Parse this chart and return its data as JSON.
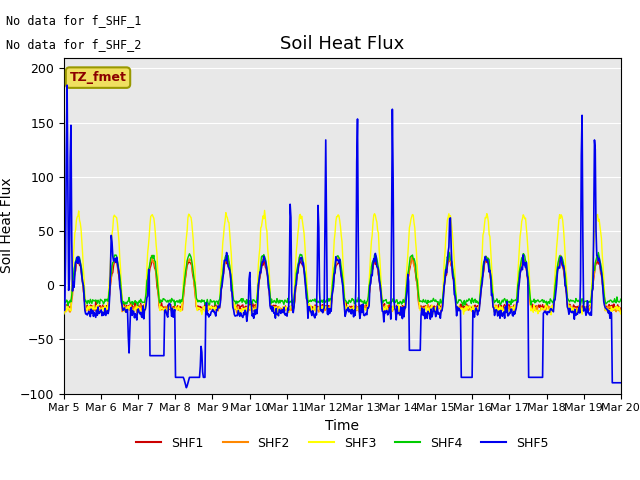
{
  "title": "Soil Heat Flux",
  "xlabel": "Time",
  "ylabel": "Soil Heat Flux",
  "ylim": [
    -100,
    210
  ],
  "yticks": [
    -100,
    -50,
    0,
    50,
    100,
    150,
    200
  ],
  "annotation1": "No data for f_SHF_1",
  "annotation2": "No data for f_SHF_2",
  "label_box": "TZ_fmet",
  "colors": {
    "SHF1": "#cc0000",
    "SHF2": "#ff8800",
    "SHF3": "#ffff00",
    "SHF4": "#00cc00",
    "SHF5": "#0000ee"
  },
  "bg_color": "#e8e8e8",
  "xtick_labels": [
    "Mar 5",
    "Mar 6",
    "Mar 7",
    "Mar 8",
    "Mar 9",
    "Mar 10",
    "Mar 11",
    "Mar 12",
    "Mar 13",
    "Mar 14",
    "Mar 15",
    "Mar 16",
    "Mar 17",
    "Mar 18",
    "Mar 19",
    "Mar 20"
  ],
  "n_points": 720
}
